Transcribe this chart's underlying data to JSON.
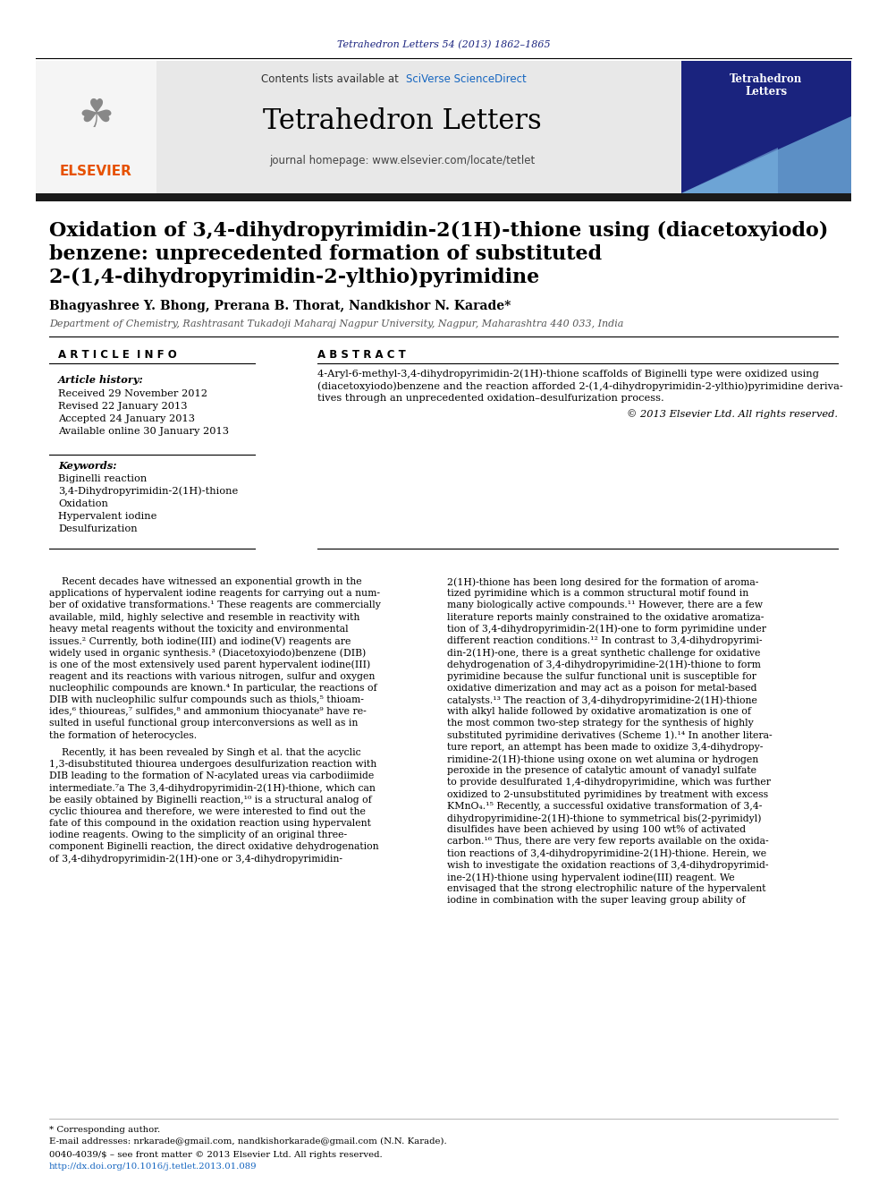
{
  "page_bg": "#ffffff",
  "journal_ref_text": "Tetrahedron Letters 54 (2013) 1862–1865",
  "journal_ref_color": "#1a237e",
  "header_bg": "#e8e8e8",
  "sciverse_color": "#1565c0",
  "journal_title": "Tetrahedron Letters",
  "journal_homepage": "journal homepage: www.elsevier.com/locate/tetlet",
  "elsevier_color": "#e65100",
  "article_title_line1": "Oxidation of 3,4-dihydropyrimidin-2(1H)-thione using (diacetoxyiodo)",
  "article_title_line2": "benzene: unprecedented formation of substituted",
  "article_title_line3": "2-(1,4-dihydropyrimidin-2-ylthio)pyrimidine",
  "authors": "Bhagyashree Y. Bhong, Prerana B. Thorat, Nandkishor N. Karade*",
  "affiliation": "Department of Chemistry, Rashtrasant Tukadoji Maharaj Nagpur University, Nagpur, Maharashtra 440 033, India",
  "article_info_label": "A R T I C L E  I N F O",
  "abstract_label": "A B S T R A C T",
  "article_history_label": "Article history:",
  "received_text": "Received 29 November 2012",
  "revised_text": "Revised 22 January 2013",
  "accepted_text": "Accepted 24 January 2013",
  "available_text": "Available online 30 January 2013",
  "keywords_label": "Keywords:",
  "keyword1": "Biginelli reaction",
  "keyword2": "3,4-Dihydropyrimidin-2(1H)-thione",
  "keyword3": "Oxidation",
  "keyword4": "Hypervalent iodine",
  "keyword5": "Desulfurization",
  "copyright_text": "© 2013 Elsevier Ltd. All rights reserved.",
  "footer_text1": "* Corresponding author.",
  "footer_text2": "E-mail addresses: nrkarade@gmail.com, nandkishorkarade@gmail.com (N.N. Karade).",
  "footer_issn": "0040-4039/$ – see front matter © 2013 Elsevier Ltd. All rights reserved.",
  "footer_doi": "http://dx.doi.org/10.1016/j.tetlet.2013.01.089",
  "separator_color": "#000000",
  "thick_bar_color": "#1a1a1a",
  "col1_p1_lines": [
    "    Recent decades have witnessed an exponential growth in the",
    "applications of hypervalent iodine reagents for carrying out a num-",
    "ber of oxidative transformations.¹ These reagents are commercially",
    "available, mild, highly selective and resemble in reactivity with",
    "heavy metal reagents without the toxicity and environmental",
    "issues.² Currently, both iodine(III) and iodine(V) reagents are",
    "widely used in organic synthesis.³ (Diacetoxyiodo)benzene (DIB)",
    "is one of the most extensively used parent hypervalent iodine(III)",
    "reagent and its reactions with various nitrogen, sulfur and oxygen",
    "nucleophilic compounds are known.⁴ In particular, the reactions of",
    "DIB with nucleophilic sulfur compounds such as thiols,⁵ thioam-",
    "ides,⁶ thioureas,⁷ sulfides,⁸ and ammonium thiocyanate⁹ have re-",
    "sulted in useful functional group interconversions as well as in",
    "the formation of heterocycles."
  ],
  "col1_p2_lines": [
    "    Recently, it has been revealed by Singh et al. that the acyclic",
    "1,3-disubstituted thiourea undergoes desulfurization reaction with",
    "DIB leading to the formation of N-acylated ureas via carbodiimide",
    "intermediate.⁷a The 3,4-dihydropyrimidin-2(1H)-thione, which can",
    "be easily obtained by Biginelli reaction,¹⁰ is a structural analog of",
    "cyclic thiourea and therefore, we were interested to find out the",
    "fate of this compound in the oxidation reaction using hypervalent",
    "iodine reagents. Owing to the simplicity of an original three-",
    "component Biginelli reaction, the direct oxidative dehydrogenation",
    "of 3,4-dihydropyrimidin-2(1H)-one or 3,4-dihydropyrimidin-"
  ],
  "col2_p1_lines": [
    "2(1H)-thione has been long desired for the formation of aroma-",
    "tized pyrimidine which is a common structural motif found in",
    "many biologically active compounds.¹¹ However, there are a few",
    "literature reports mainly constrained to the oxidative aromatiza-",
    "tion of 3,4-dihydropyrimidin-2(1H)-one to form pyrimidine under",
    "different reaction conditions.¹² In contrast to 3,4-dihydropyrimi-",
    "din-2(1H)-one, there is a great synthetic challenge for oxidative",
    "dehydrogenation of 3,4-dihydropyrimidine-2(1H)-thione to form",
    "pyrimidine because the sulfur functional unit is susceptible for",
    "oxidative dimerization and may act as a poison for metal-based",
    "catalysts.¹³ The reaction of 3,4-dihydropyrimidine-2(1H)-thione",
    "with alkyl halide followed by oxidative aromatization is one of",
    "the most common two-step strategy for the synthesis of highly",
    "substituted pyrimidine derivatives (Scheme 1).¹⁴ In another litera-",
    "ture report, an attempt has been made to oxidize 3,4-dihydropy-",
    "rimidine-2(1H)-thione using oxone on wet alumina or hydrogen",
    "peroxide in the presence of catalytic amount of vanadyl sulfate",
    "to provide desulfurated 1,4-dihydropyrimidine, which was further",
    "oxidized to 2-unsubstituted pyrimidines by treatment with excess",
    "KMnO₄.¹⁵ Recently, a successful oxidative transformation of 3,4-",
    "dihydropyrimidine-2(1H)-thione to symmetrical bis(2-pyrimidyl)",
    "disulfides have been achieved by using 100 wt% of activated",
    "carbon.¹⁶ Thus, there are very few reports available on the oxida-",
    "tion reactions of 3,4-dihydropyrimidine-2(1H)-thione. Herein, we",
    "wish to investigate the oxidation reactions of 3,4-dihydropyrimid-",
    "ine-2(1H)-thione using hypervalent iodine(III) reagent. We",
    "envisaged that the strong electrophilic nature of the hypervalent",
    "iodine in combination with the super leaving group ability of"
  ],
  "abstract_lines": [
    "4-Aryl-6-methyl-3,4-dihydropyrimidin-2(1H)-thione scaffolds of Biginelli type were oxidized using",
    "(diacetoxyiodo)benzene and the reaction afforded 2-(1,4-dihydropyrimidin-2-ylthio)pyrimidine deriva-",
    "tives through an unprecedented oxidation–desulfurization process."
  ]
}
